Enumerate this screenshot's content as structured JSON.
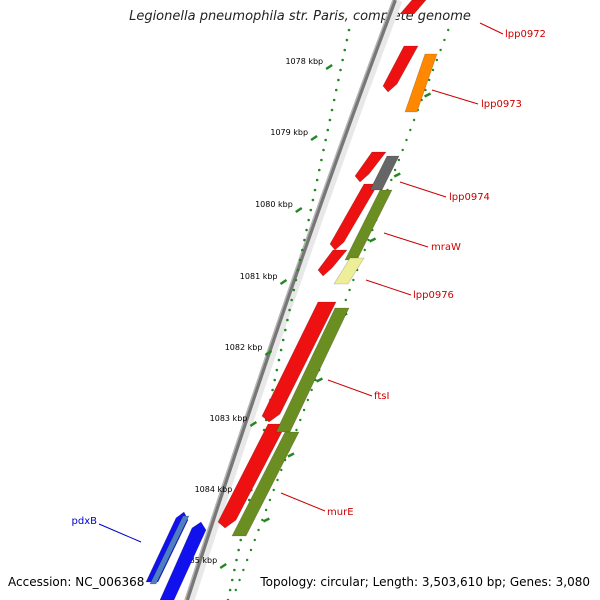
{
  "title": "Legionella pneumophila str. Paris, complete genome",
  "footer": {
    "accession": "Accession: NC_006368",
    "summary": "Topology: circular; Length: 3,503,610 bp; Genes: 3,080"
  },
  "ruler": {
    "tick_labels": [
      "1078 kbp",
      "1079 kbp",
      "1080 kbp",
      "1081 kbp",
      "1082 kbp",
      "1083 kbp",
      "1084 kbp",
      "1085 kbp"
    ]
  },
  "genes": [
    {
      "name": "lpp0972",
      "color": "#cc0000"
    },
    {
      "name": "lpp0973",
      "color": "#cc0000"
    },
    {
      "name": "lpp0974",
      "color": "#cc0000"
    },
    {
      "name": "mraW",
      "color": "#cc0000"
    },
    {
      "name": "lpp0976",
      "color": "#cc0000"
    },
    {
      "name": "ftsI",
      "color": "#cc0000"
    },
    {
      "name": "murE",
      "color": "#cc0000"
    },
    {
      "name": "pdxB",
      "color": "#0000cc"
    }
  ],
  "colors": {
    "red": "#ee1111",
    "orange": "#ff8800",
    "gray": "#666666",
    "olive": "#6b8e23",
    "paleyellow": "#eeee99",
    "blue": "#1111ee",
    "steelblue": "#4f7fbf",
    "ruler_green": "#228822"
  }
}
